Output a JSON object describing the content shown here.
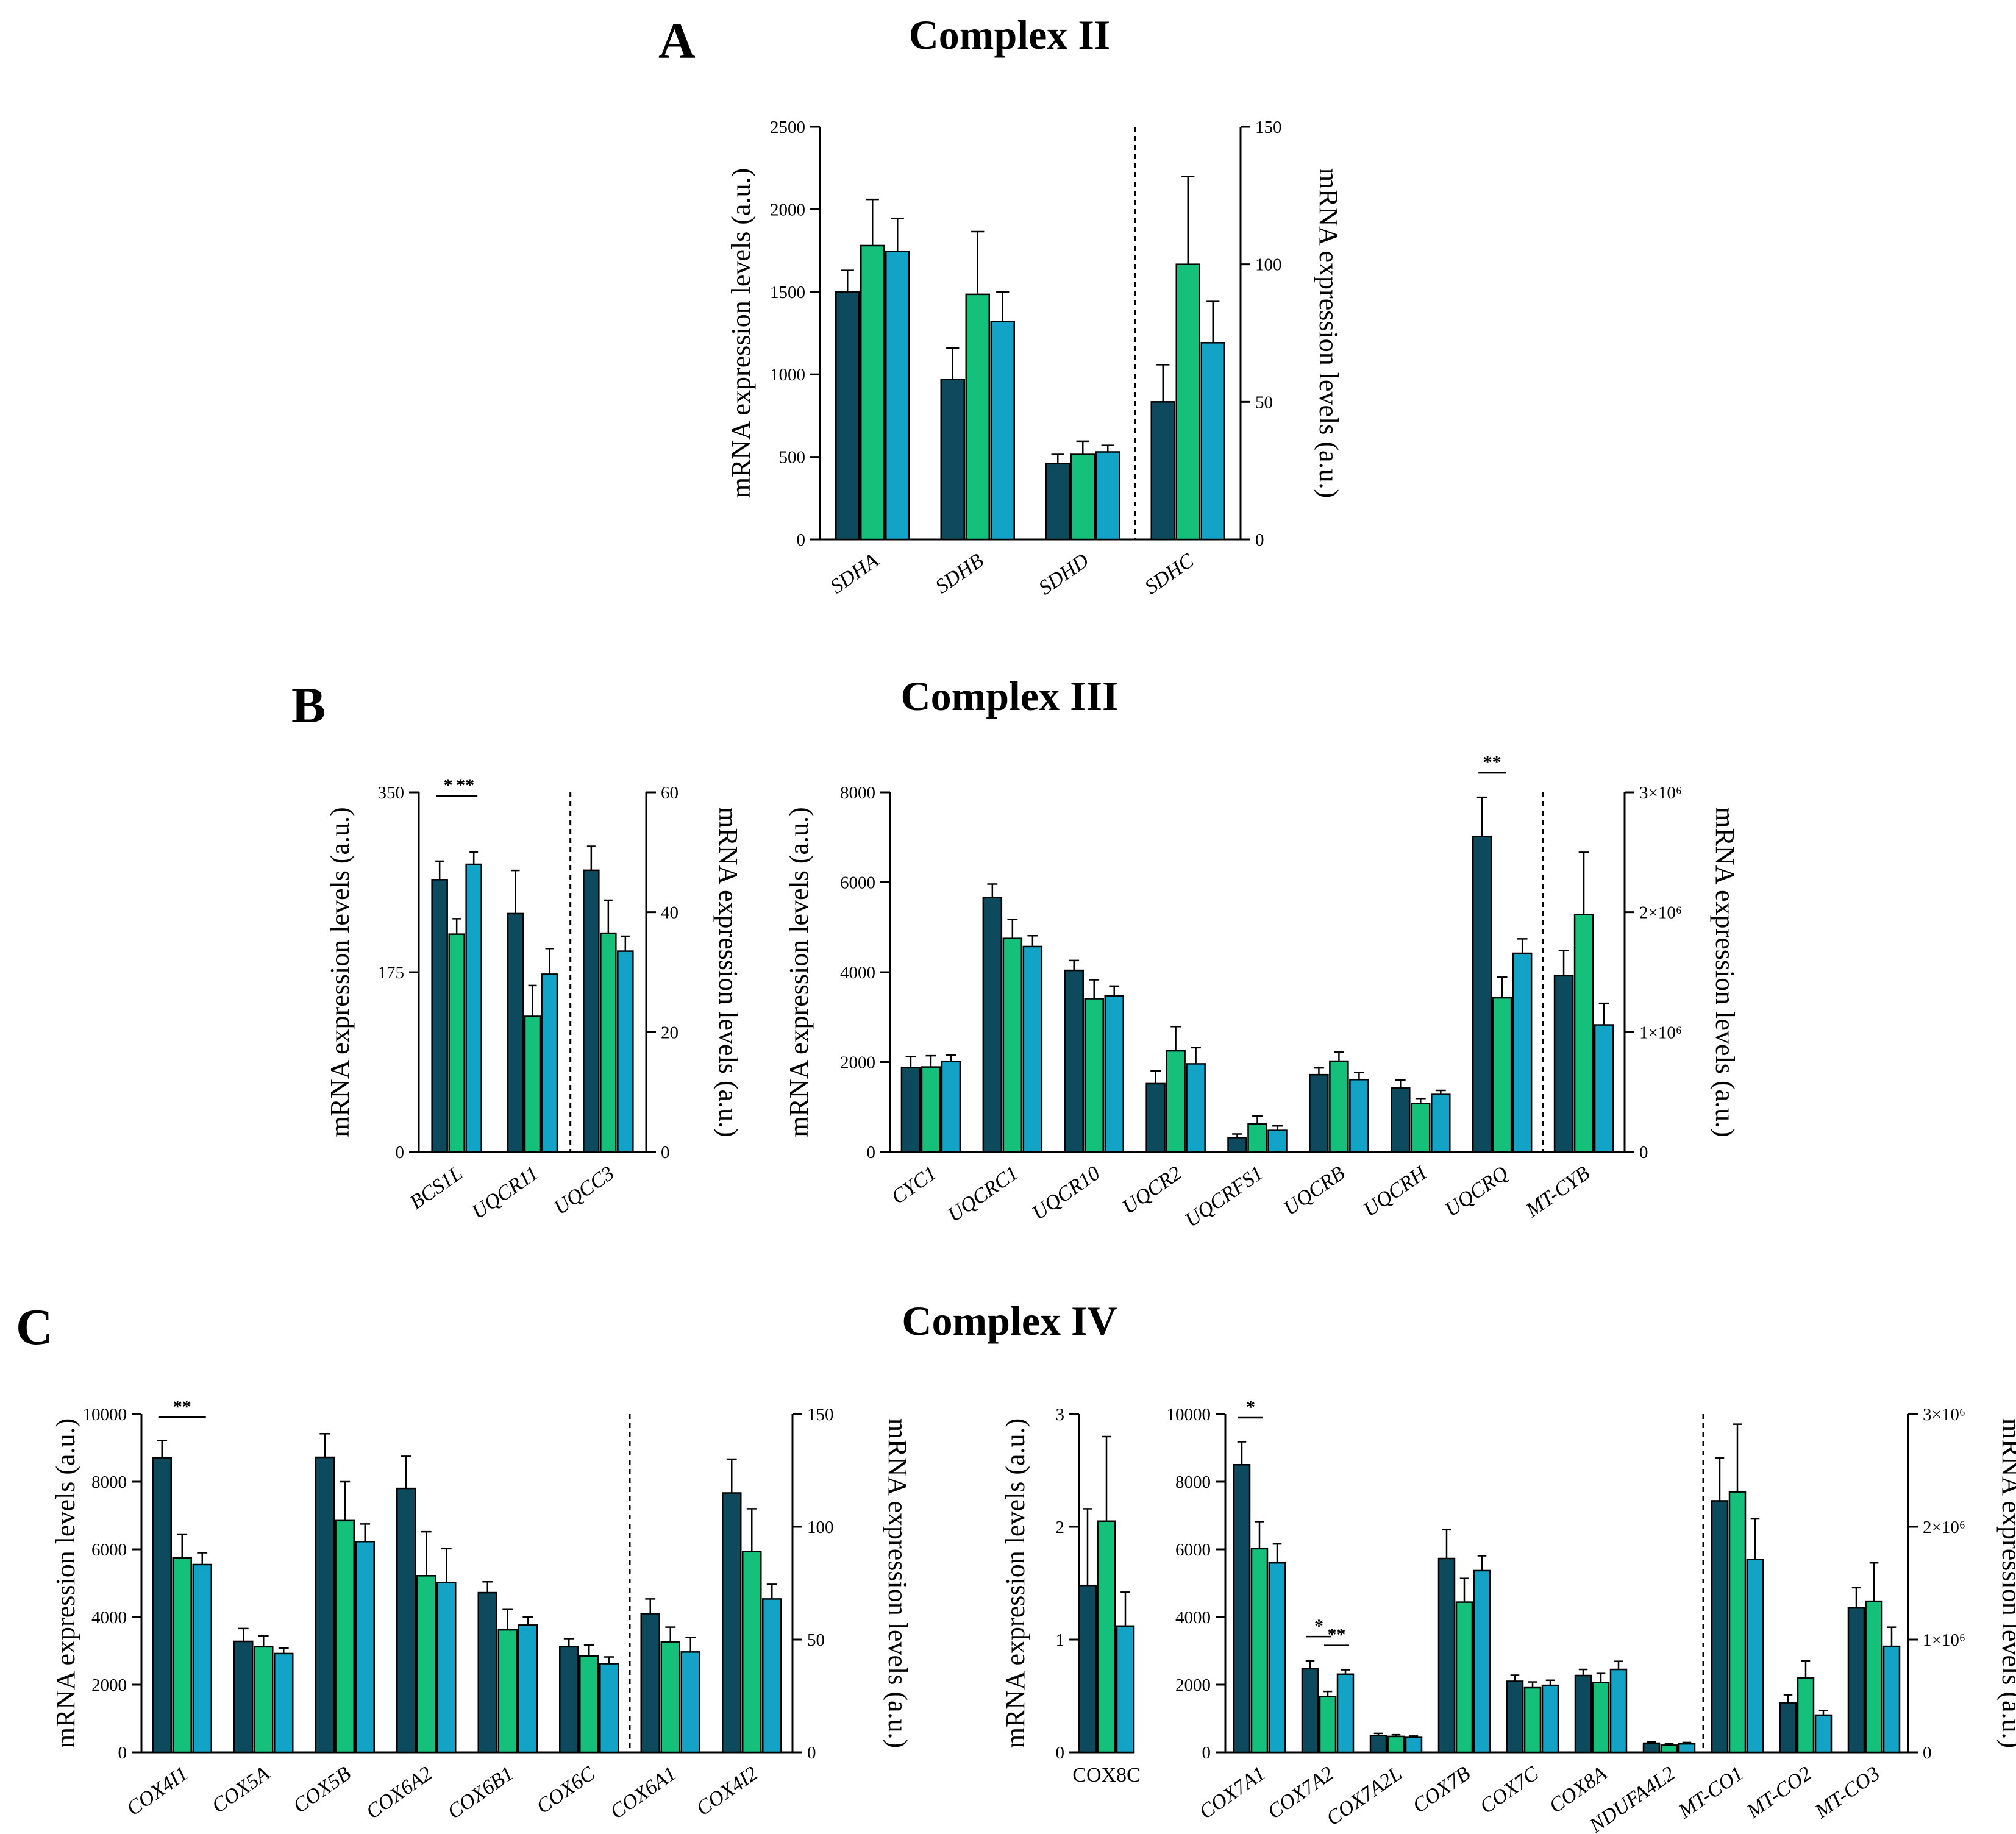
{
  "colors": {
    "group1": "#0d4a5e",
    "group2": "#15c07a",
    "group3": "#13a3c6",
    "error": "#000000"
  },
  "panel_letters": [
    "A",
    "B",
    "C"
  ],
  "chart_data": [
    {
      "id": "A",
      "type": "bar",
      "title": "Complex II",
      "ylabel": "mRNA expression levels (a.u.)",
      "y2label": "mRNA expression levels (a.u.)",
      "ylim": [
        0,
        2500
      ],
      "yticks": [
        0,
        500,
        1000,
        1500,
        2000,
        2500
      ],
      "yticklabels": [
        "0",
        "500",
        "1000",
        "1500",
        "2000",
        "2500"
      ],
      "y2lim": [
        0,
        150
      ],
      "y2ticks": [
        0,
        50,
        100,
        150
      ],
      "y2ticklabels": [
        "0",
        "50",
        "100",
        "150"
      ],
      "divider_after": 3,
      "italic_categories": true,
      "categories": [
        "SDHA",
        "SDHB",
        "SDHD",
        "SDHC"
      ],
      "axis": [
        "left",
        "left",
        "left",
        "right"
      ],
      "values": [
        [
          1500,
          1780,
          1745
        ],
        [
          970,
          1485,
          1320
        ],
        [
          460,
          515,
          530
        ],
        [
          50,
          100,
          71.5
        ]
      ],
      "errors": [
        [
          130,
          280,
          200
        ],
        [
          190,
          380,
          180
        ],
        [
          55,
          80,
          40
        ],
        [
          13.5,
          32,
          15
        ]
      ],
      "significance": []
    },
    {
      "id": "B1",
      "type": "bar",
      "title": "Complex III",
      "ylabel": "mRNA expression levels (a.u.)",
      "y2label": "mRNA expression levels (a.u.)",
      "ylim": [
        0,
        350
      ],
      "yticks": [
        0,
        175,
        350
      ],
      "yticklabels": [
        "0",
        "175",
        "350"
      ],
      "y2lim": [
        0,
        60
      ],
      "y2ticks": [
        0,
        20,
        40,
        60
      ],
      "y2ticklabels": [
        "0",
        "20",
        "40",
        "60"
      ],
      "divider_after": 2,
      "italic_categories": true,
      "categories": [
        "BCS1L",
        "UQCR11",
        "UQCC3"
      ],
      "axis": [
        "left",
        "left",
        "right"
      ],
      "values": [
        [
          265,
          212,
          280
        ],
        [
          232,
          132,
          173
        ],
        [
          47,
          36.5,
          33.5
        ]
      ],
      "errors": [
        [
          18,
          15,
          12
        ],
        [
          42,
          30,
          25
        ],
        [
          4,
          5.5,
          2.5
        ]
      ],
      "significance": [
        {
          "g": 0,
          "from": 0,
          "to": 1,
          "label": "*"
        },
        {
          "g": 0,
          "from": 1,
          "to": 2,
          "label": "**"
        }
      ]
    },
    {
      "id": "B2",
      "type": "bar",
      "ylabel": "mRNA expression levels (a.u.)",
      "y2label": "mRNA expression levels (a.u.)",
      "ylim": [
        0,
        8000
      ],
      "yticks": [
        0,
        2000,
        4000,
        6000,
        8000
      ],
      "yticklabels": [
        "0",
        "2000",
        "4000",
        "6000",
        "8000"
      ],
      "y2lim": [
        0,
        3000000
      ],
      "y2ticks": [
        0,
        1000000,
        2000000,
        3000000
      ],
      "y2ticklabels": [
        "0",
        "1×10⁶",
        "2×10⁶",
        "3×10⁶"
      ],
      "divider_after": 8,
      "italic_categories": true,
      "categories": [
        "CYC1",
        "UQCRC1",
        "UQCR10",
        "UQCR2",
        "UQCRFS1",
        "UQCRB",
        "UQCRH",
        "UQCRQ",
        "MT-CYB"
      ],
      "axis": [
        "left",
        "left",
        "left",
        "left",
        "left",
        "left",
        "left",
        "left",
        "right"
      ],
      "values": [
        [
          1880,
          1890,
          2010
        ],
        [
          5660,
          4750,
          4570
        ],
        [
          4040,
          3410,
          3470
        ],
        [
          1520,
          2250,
          1960
        ],
        [
          320,
          620,
          480
        ],
        [
          1720,
          2020,
          1610
        ],
        [
          1420,
          1080,
          1280
        ],
        [
          7020,
          3430,
          4420
        ],
        [
          1470000,
          1980000,
          1060000
        ]
      ],
      "errors": [
        [
          240,
          250,
          150
        ],
        [
          300,
          420,
          240
        ],
        [
          220,
          420,
          220
        ],
        [
          280,
          540,
          360
        ],
        [
          80,
          180,
          100
        ],
        [
          150,
          200,
          160
        ],
        [
          180,
          110,
          90
        ],
        [
          870,
          460,
          320
        ],
        [
          210000,
          520000,
          180000
        ]
      ],
      "significance": [
        {
          "g": 7,
          "from": 0,
          "to": 1,
          "label": "**"
        }
      ]
    },
    {
      "id": "C1",
      "type": "bar",
      "title": "Complex IV",
      "ylabel": "mRNA expression levels (a.u.)",
      "y2label": "mRNA expression levels (a.u.)",
      "ylim": [
        0,
        10000
      ],
      "yticks": [
        0,
        2000,
        4000,
        6000,
        8000,
        10000
      ],
      "yticklabels": [
        "0",
        "2000",
        "4000",
        "6000",
        "8000",
        "10000"
      ],
      "y2lim": [
        0,
        150
      ],
      "y2ticks": [
        0,
        50,
        100,
        150
      ],
      "y2ticklabels": [
        "0",
        "50",
        "100",
        "150"
      ],
      "divider_after": 6,
      "italic_categories": true,
      "categories": [
        "COX4I1",
        "COX5A",
        "COX5B",
        "COX6A2",
        "COX6B1",
        "COX6C",
        "COX6A1",
        "COX4I2"
      ],
      "axis": [
        "left",
        "left",
        "left",
        "left",
        "left",
        "left",
        "right",
        "right"
      ],
      "values": [
        [
          8700,
          5750,
          5550
        ],
        [
          3280,
          3120,
          2920
        ],
        [
          8720,
          6850,
          6230
        ],
        [
          7800,
          5220,
          5020
        ],
        [
          4720,
          3620,
          3760
        ],
        [
          3120,
          2850,
          2620
        ],
        [
          61.5,
          49,
          44.5
        ],
        [
          115,
          89,
          68
        ]
      ],
      "errors": [
        [
          520,
          700,
          350
        ],
        [
          380,
          320,
          160
        ],
        [
          700,
          1150,
          520
        ],
        [
          950,
          1300,
          1000
        ],
        [
          320,
          600,
          240
        ],
        [
          240,
          320,
          200
        ],
        [
          6.5,
          6.5,
          6.5
        ],
        [
          15,
          19,
          6.5
        ]
      ],
      "significance": [
        {
          "g": 0,
          "from": 0,
          "to": 2,
          "label": "**"
        }
      ]
    },
    {
      "id": "C2",
      "type": "bar",
      "ylabel": "mRNA expression levels (a.u.)",
      "ylim": [
        0,
        3
      ],
      "yticks": [
        0,
        1,
        2,
        3
      ],
      "yticklabels": [
        "0",
        "1",
        "2",
        "3"
      ],
      "divider_after": null,
      "italic_categories": false,
      "categories": [
        "COX8C"
      ],
      "axis": [
        "left"
      ],
      "values": [
        [
          1.48,
          2.05,
          1.12
        ]
      ],
      "errors": [
        [
          0.68,
          0.75,
          0.3
        ]
      ],
      "significance": []
    },
    {
      "id": "C3",
      "type": "bar",
      "y2label": "mRNA expression levels (a.u.)",
      "ylim": [
        0,
        10000
      ],
      "yticks": [
        0,
        2000,
        4000,
        6000,
        8000,
        10000
      ],
      "yticklabels": [
        "0",
        "2000",
        "4000",
        "6000",
        "8000",
        "10000"
      ],
      "y2lim": [
        0,
        3000000
      ],
      "y2ticks": [
        0,
        1000000,
        2000000,
        3000000
      ],
      "y2ticklabels": [
        "0",
        "1×10⁶",
        "2×10⁶",
        "3×10⁶"
      ],
      "divider_after": 7,
      "italic_categories": true,
      "categories": [
        "COX7A1",
        "COX7A2",
        "COX7A2L",
        "COX7B",
        "COX7C",
        "COX8A",
        "NDUFA4L2",
        "MT-CO1",
        "MT-CO2",
        "MT-CO3"
      ],
      "axis": [
        "left",
        "left",
        "left",
        "left",
        "left",
        "left",
        "left",
        "right",
        "right",
        "right"
      ],
      "values": [
        [
          8500,
          6020,
          5600
        ],
        [
          2470,
          1650,
          2310
        ],
        [
          500,
          470,
          440
        ],
        [
          5730,
          4440,
          5370
        ],
        [
          2100,
          1910,
          1980
        ],
        [
          2270,
          2060,
          2450
        ],
        [
          270,
          210,
          250
        ],
        [
          2230000,
          2310000,
          1710000
        ],
        [
          440000,
          660000,
          330000
        ],
        [
          1280000,
          1340000,
          940000
        ]
      ],
      "errors": [
        [
          680,
          800,
          560
        ],
        [
          230,
          150,
          130
        ],
        [
          60,
          50,
          40
        ],
        [
          850,
          700,
          440
        ],
        [
          180,
          170,
          150
        ],
        [
          180,
          270,
          240
        ],
        [
          40,
          40,
          40
        ],
        [
          380000,
          600000,
          360000
        ],
        [
          70000,
          150000,
          40000
        ],
        [
          180000,
          340000,
          170000
        ]
      ],
      "significance": [
        {
          "g": 0,
          "from": 0,
          "to": 1,
          "label": "*"
        },
        {
          "g": 1,
          "from": 0,
          "to": 1,
          "label": "*"
        },
        {
          "g": 1,
          "from": 1,
          "to": 2,
          "label": "**"
        }
      ]
    }
  ]
}
